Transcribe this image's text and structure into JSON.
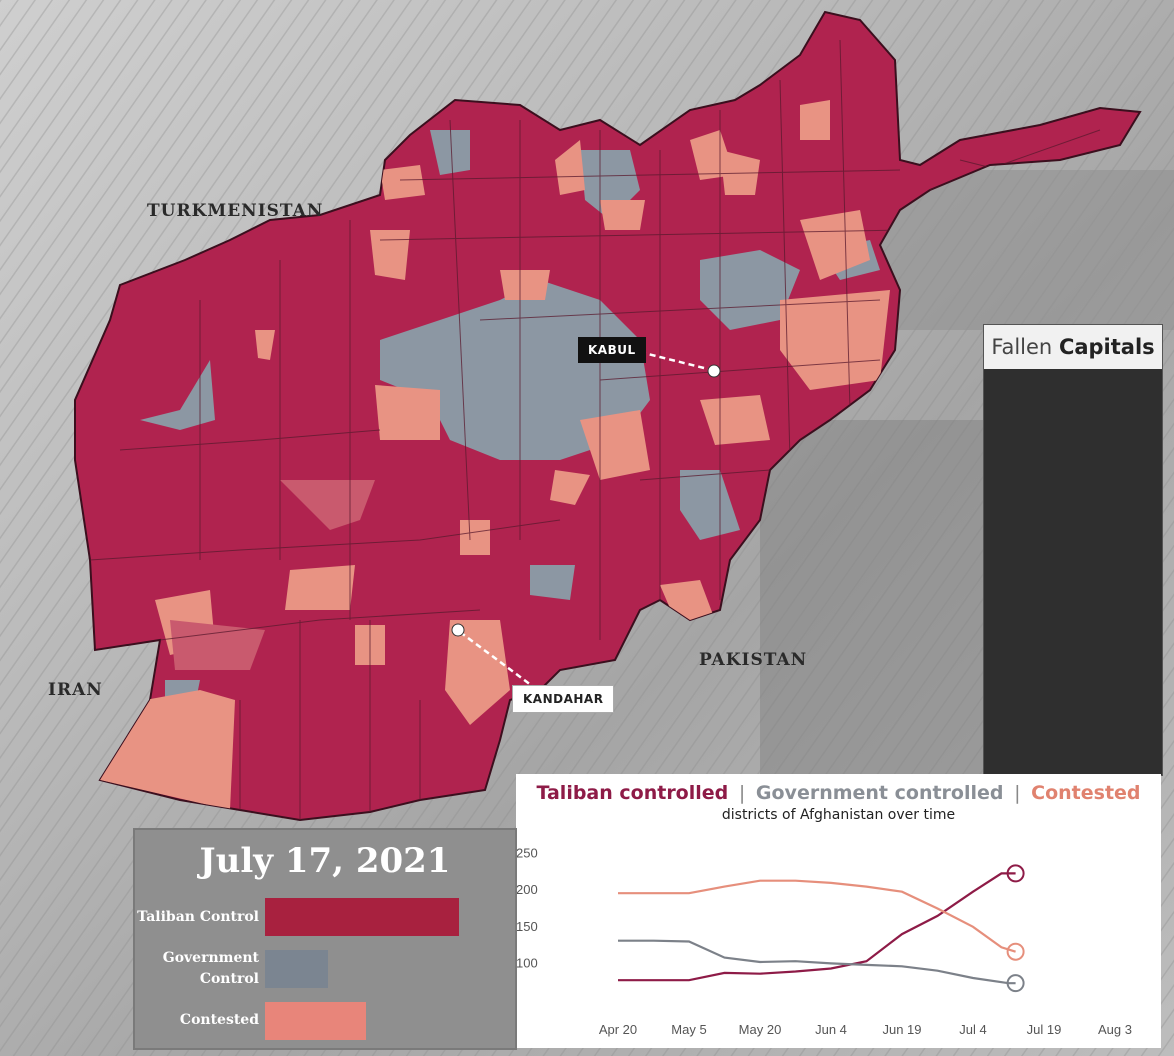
{
  "map": {
    "countries": {
      "turkmenistan": "TURKMENISTAN",
      "iran": "IRAN",
      "pakistan": "PAKISTAN"
    },
    "cities": {
      "kabul": "KABUL",
      "kandahar": "KANDAHAR"
    },
    "colors": {
      "taliban": "#b0234f",
      "government": "#8c97a3",
      "contested": "#e89383",
      "borders": "#5a1a2e"
    }
  },
  "fallen_capitals": {
    "title_prefix": "Fallen",
    "title_bold": "Capitals"
  },
  "trend": {
    "legend": {
      "taliban": "Taliban controlled",
      "government": "Government controlled",
      "contested": "Contested",
      "separator": "|"
    },
    "subtitle": "districts of Afghanistan over time"
  },
  "date_panel": {
    "date": "July 17, 2021"
  },
  "status_bars": {
    "items": [
      {
        "label": "Taliban Control",
        "value": 223,
        "color": "#a8213f"
      },
      {
        "label": "Government Control",
        "value": 73,
        "color": "#7b8591"
      },
      {
        "label": "Contested",
        "value": 116,
        "color": "#e8857a"
      }
    ],
    "max": 230
  },
  "chart_data": {
    "type": "line",
    "x": [
      "Apr 20",
      "May 5",
      "May 20",
      "Jun 4",
      "Jun 19",
      "Jul 4",
      "Jul 19",
      "Aug 3"
    ],
    "ylim": [
      50,
      255
    ],
    "yticks": [
      100,
      150,
      200,
      250
    ],
    "series": [
      {
        "name": "Taliban controlled",
        "color": "#8e1b47",
        "points": [
          [
            0,
            77
          ],
          [
            0.3,
            77
          ],
          [
            0.6,
            77
          ],
          [
            1,
            77
          ],
          [
            1.5,
            87
          ],
          [
            2,
            86
          ],
          [
            2.5,
            89
          ],
          [
            3,
            93
          ],
          [
            3.5,
            103
          ],
          [
            4,
            140
          ],
          [
            4.5,
            165
          ],
          [
            5,
            198
          ],
          [
            5.4,
            223
          ],
          [
            5.6,
            223
          ]
        ]
      },
      {
        "name": "Government controlled",
        "color": "#7c8189",
        "points": [
          [
            0,
            131
          ],
          [
            0.5,
            131
          ],
          [
            1,
            130
          ],
          [
            1.5,
            108
          ],
          [
            2,
            102
          ],
          [
            2.5,
            103
          ],
          [
            3,
            100
          ],
          [
            3.5,
            98
          ],
          [
            4,
            96
          ],
          [
            4.5,
            90
          ],
          [
            5,
            80
          ],
          [
            5.5,
            73
          ],
          [
            5.6,
            73
          ]
        ]
      },
      {
        "name": "Contested",
        "color": "#e68f7c",
        "points": [
          [
            0,
            196
          ],
          [
            0.5,
            196
          ],
          [
            1,
            196
          ],
          [
            1.5,
            205
          ],
          [
            2,
            213
          ],
          [
            2.5,
            213
          ],
          [
            3,
            210
          ],
          [
            3.5,
            205
          ],
          [
            4,
            198
          ],
          [
            4.5,
            175
          ],
          [
            5,
            150
          ],
          [
            5.4,
            122
          ],
          [
            5.6,
            116
          ]
        ]
      }
    ]
  }
}
